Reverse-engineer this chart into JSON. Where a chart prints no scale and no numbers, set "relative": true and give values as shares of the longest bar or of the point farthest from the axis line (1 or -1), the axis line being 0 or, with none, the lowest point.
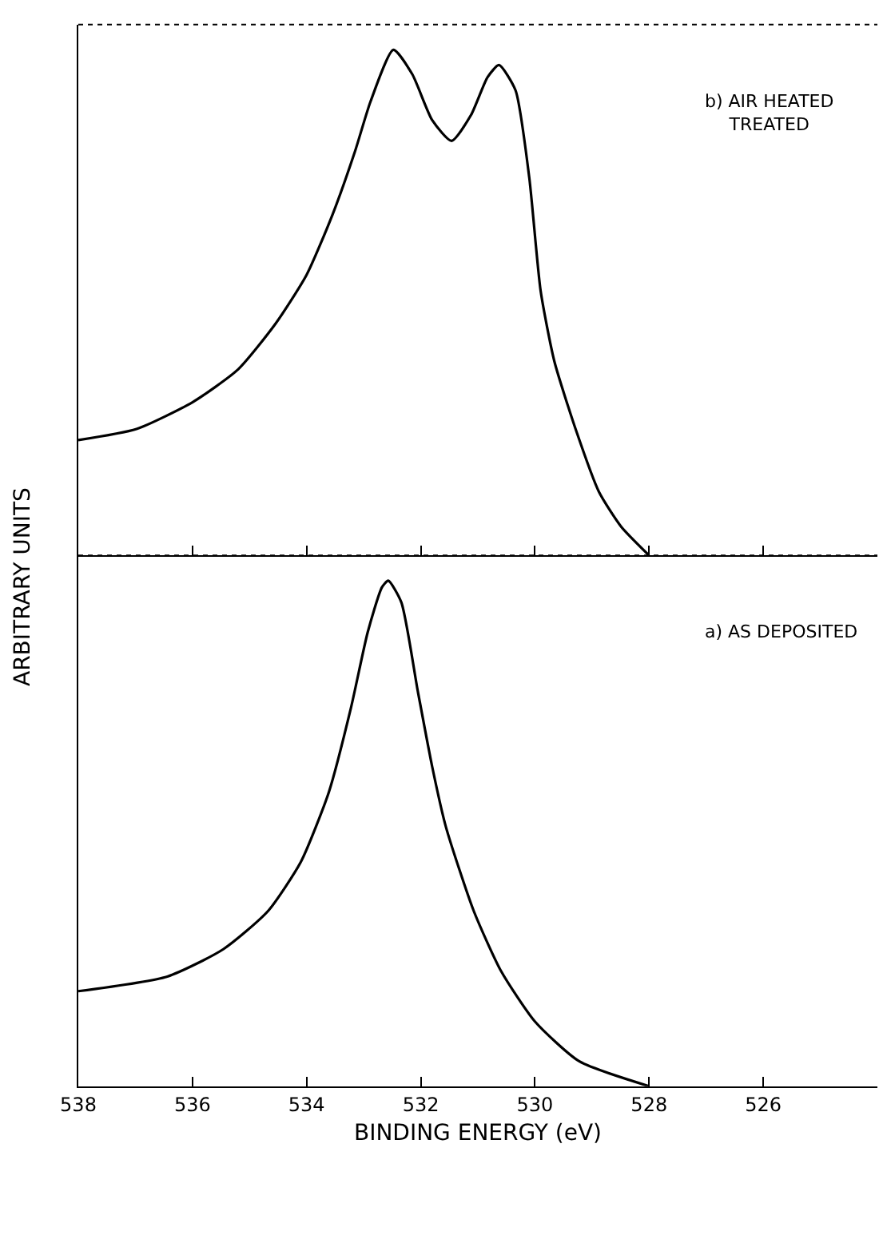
{
  "chart_data": [
    {
      "type": "line",
      "relative": true,
      "ylabel": "ARBITRARY UNITS",
      "tick_labels": false,
      "xlim": [
        538,
        524
      ],
      "xticks": [
        538,
        536,
        534,
        532,
        530,
        528,
        526
      ],
      "annotations": [
        "b) AIR HEATED\nTREATED"
      ],
      "series": [
        {
          "color": "#000000",
          "x": [
            538,
            536.98,
            536,
            535.2,
            534.54,
            534,
            533.55,
            533.15,
            532.88,
            532.48,
            532.15,
            531.8,
            531.46,
            531.12,
            530.83,
            530.63,
            530.34,
            530.1,
            529.9,
            529.66,
            529.27,
            528.88,
            528.49,
            528
          ],
          "values": [
            0.228,
            0.25,
            0.303,
            0.368,
            0.459,
            0.555,
            0.673,
            0.8,
            0.898,
            1.0,
            0.952,
            0.861,
            0.82,
            0.871,
            0.946,
            0.97,
            0.92,
            0.748,
            0.523,
            0.384,
            0.244,
            0.126,
            0.057,
            0
          ]
        }
      ]
    },
    {
      "type": "line",
      "relative": true,
      "xlabel": "BINDING ENERGY (eV)",
      "tick_labels": "x",
      "xlim": [
        538,
        524
      ],
      "xticks": [
        538,
        536,
        534,
        532,
        530,
        528,
        526
      ],
      "annotations": [
        "a) AS DEPOSITED"
      ],
      "series": [
        {
          "color": "#000000",
          "x": [
            538,
            536.44,
            535.46,
            534.68,
            534.1,
            533.61,
            533.22,
            532.93,
            532.68,
            532.57,
            532.34,
            532.05,
            531.8,
            531.56,
            531.07,
            530.59,
            530,
            529.22,
            528
          ],
          "values": [
            0.188,
            0.217,
            0.271,
            0.346,
            0.444,
            0.582,
            0.75,
            0.898,
            0.987,
            1.0,
            0.957,
            0.78,
            0.632,
            0.513,
            0.346,
            0.227,
            0.128,
            0.049,
            0
          ]
        }
      ]
    }
  ]
}
